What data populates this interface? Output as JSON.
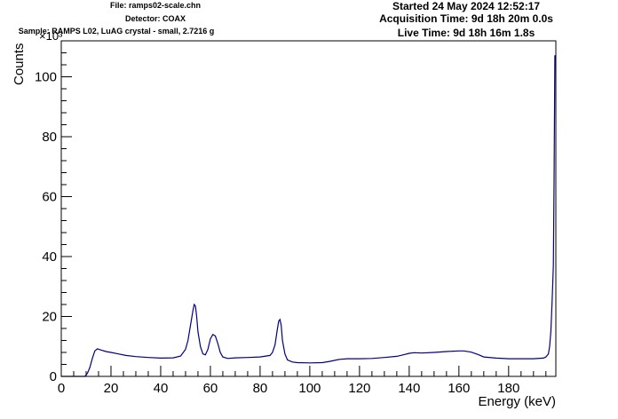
{
  "header": {
    "file": "File: ramps02-scale.chn",
    "detector": "Detector: COAX",
    "sample": "Sample: RAMPS L02, LuAG crystal - small, 2.7216 g",
    "started": "Started 24 May 2024 12:52:17",
    "acquisition": "Acquisition Time: 9d 18h 20m 0.0s",
    "live": "Live Time: 9d 18h 16m 1.8s"
  },
  "chart_data": {
    "type": "line",
    "xlabel": "Energy (keV)",
    "ylabel": "Counts",
    "yexponent": "×10³",
    "xlim": [
      0,
      199
    ],
    "ylim": [
      0,
      112
    ],
    "xticks": [
      0,
      20,
      40,
      60,
      80,
      100,
      120,
      140,
      160,
      180
    ],
    "yticks": [
      0,
      20,
      40,
      60,
      80,
      100
    ],
    "grid": false,
    "line_color": "#000080",
    "series": [
      {
        "x": [
          0,
          9.5,
          10.5,
          11.5,
          12.5,
          13.5,
          14.5,
          16,
          18,
          20,
          23,
          26,
          30,
          35,
          40,
          45,
          48,
          50,
          51,
          52,
          53,
          53.5,
          54,
          54.5,
          55,
          56,
          57,
          58,
          59,
          60,
          61,
          62,
          63,
          64,
          65,
          67,
          70,
          75,
          80,
          84,
          85,
          86,
          87,
          87.5,
          88,
          88.5,
          89,
          90,
          91,
          93,
          95,
          100,
          105,
          108,
          112,
          115,
          120,
          125,
          130,
          135,
          138,
          140,
          142,
          145,
          150,
          155,
          160,
          162,
          165,
          168,
          170,
          175,
          180,
          185,
          190,
          194,
          195,
          196,
          196.5,
          197,
          197.5,
          198,
          198.3,
          198.6,
          199
        ],
        "y": [
          0,
          0,
          1,
          3,
          6,
          8.5,
          9.2,
          8.8,
          8.3,
          8,
          7.5,
          7,
          6.6,
          6.3,
          6.1,
          6.2,
          6.8,
          9,
          12,
          17,
          22,
          24,
          23.5,
          20,
          15,
          10,
          7.5,
          7.2,
          9,
          12.5,
          14,
          13.5,
          11,
          8,
          6.5,
          6,
          6.2,
          6.3,
          6.5,
          7,
          8,
          10.5,
          16,
          18.5,
          19,
          17,
          12,
          7.5,
          5.5,
          4.8,
          4.6,
          4.5,
          4.6,
          5,
          5.7,
          5.9,
          5.9,
          6,
          6.3,
          6.7,
          7.3,
          7.7,
          7.9,
          7.8,
          8,
          8.3,
          8.5,
          8.5,
          8.1,
          7.2,
          6.5,
          6.1,
          5.9,
          5.9,
          5.9,
          6.1,
          6.5,
          7.5,
          10,
          15,
          25,
          37,
          65,
          107,
          107
        ]
      }
    ]
  }
}
